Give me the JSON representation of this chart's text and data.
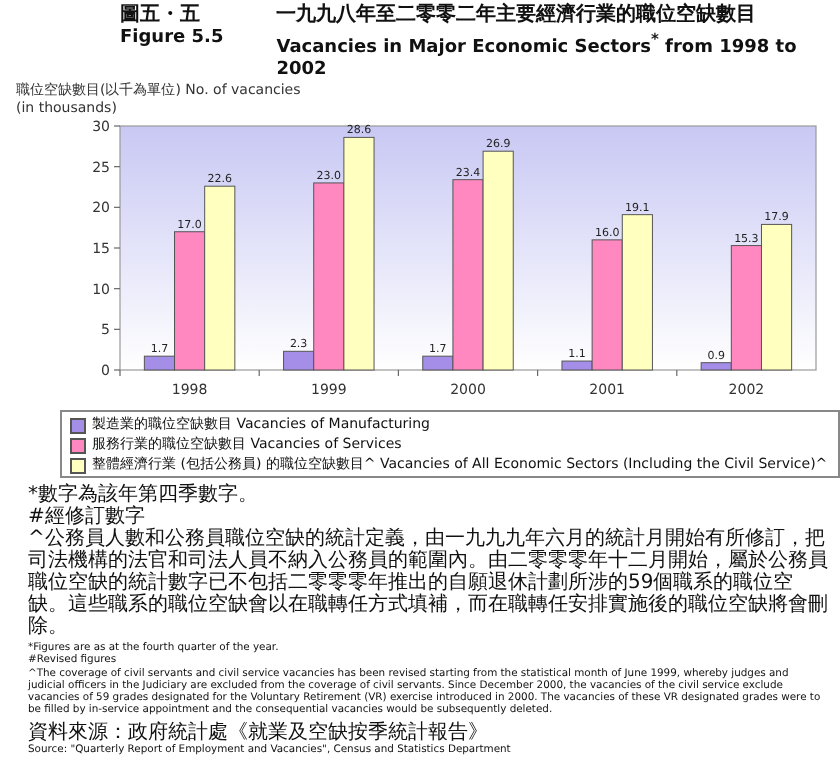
{
  "chart_data": {
    "type": "bar",
    "title": "一九九八年至二零零二年主要經濟行業的職位空缺數目",
    "subtitle": "Vacancies in Major Economic Sectors$^{*}$ from 1998 to 2002",
    "ylabel": "職位空缺數目(以千為單位) No. of vacancies (in thousands)",
    "categories": [
      "1998",
      "1999",
      "2000",
      "2001",
      "2002"
    ],
    "series": [
      {
        "name": "製造業的職位空缺數目 Vacancies of Manufacturing",
        "color": "#a58ee8",
        "values": [
          1.7,
          2.3,
          1.7,
          1.1,
          0.9
        ],
        "value_labels": [
          "1.7",
          "2.3",
          "1.7",
          "1.1",
          "0.9"
        ]
      },
      {
        "name": "服務行業的職位空缺數目 Vacancies of Services",
        "color": "#ff88c0",
        "values": [
          17.0,
          23.0,
          23.4,
          16.0,
          15.3
        ],
        "value_labels": [
          "17.0",
          "23.0",
          "23.4",
          "16.0",
          "15.3"
        ]
      },
      {
        "name": "整體經濟行業 (包括公務員) 的職位空缺數目^ Vacancies of All Economic Sectors (Including the Civil Service)^",
        "color": "#ffffc0",
        "values": [
          22.6,
          28.6,
          26.9,
          19.1,
          17.9
        ],
        "value_labels": [
          "22.6",
          "28.6",
          "26.9",
          "19.1",
          "17.9"
        ]
      }
    ],
    "ylim": [
      0,
      30
    ],
    "yticks": [
      0,
      5,
      10,
      15,
      20,
      25,
      30
    ],
    "legend": "bottom",
    "annotations": [
      "圖五・五",
      "Figure 5.5",
      "*數字為該年第四季數字。",
      "#經修訂數字",
      "^公務員人數和公務員職位空缺的統計定義，由一九九九年六月的統計月開始有所修訂，把司法機構的法官和司法人員不納入公務員的範圍內。由二零零零年十二月開始，屬於公務員職位空缺的統計數字已不包括二零零零年推出的自願退休計劃所涉的59個職系的職位空缺。這些職系的職位空缺會以在職轉任方式填補，而在職轉任安排實施後的職位空缺將會刪除。",
      "*Figures are as at the fourth quarter of the year.",
      "#Revised figures",
      "^The coverage of civil servants and civil service vacancies has been revised starting from the statistical month of June 1999, whereby judges and judicial officers in the Judiciary are excluded from the coverage of civil servants. Since December 2000, the vacancies of the civil service exclude vacancies of 59 grades designated for the Voluntary Retirement (VR) exercise introduced in 2000. The vacancies of these VR designated grades were to be filled by in-service appointment and the consequential vacancies would be subsequently deleted.",
      "資料來源：政府統計處《就業及空缺按季統計報告》",
      "Source: \"Quarterly Report of Employment and Vacancies\", Census and Statistics Department"
    ]
  }
}
